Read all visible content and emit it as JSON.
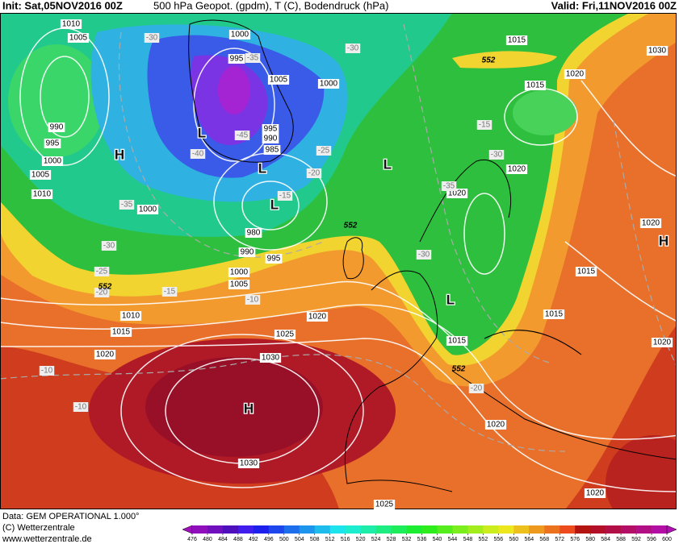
{
  "header": {
    "init": "Init: Sat,05NOV2016 00Z",
    "title": "500 hPa Geopot. (gpdm), T (C), Bodendruck (hPa)",
    "valid": "Valid: Fri,11NOV2016 00Z"
  },
  "footer": {
    "data": "Data: GEM OPERATIONAL 1.000°",
    "copyright": "(C) Wetterzentrale",
    "url": "www.wetterzentrale.de"
  },
  "colorbar": {
    "ticks": [
      476,
      480,
      484,
      488,
      492,
      496,
      500,
      504,
      508,
      512,
      516,
      520,
      524,
      528,
      532,
      536,
      540,
      544,
      548,
      552,
      556,
      560,
      564,
      568,
      572,
      576,
      580,
      584,
      588,
      592,
      596,
      600
    ]
  },
  "map": {
    "pressure_labels": [
      1010,
      1005,
      1000,
      995,
      1005,
      1000,
      995,
      990,
      985,
      990,
      995,
      1000,
      1005,
      1010,
      1000,
      980,
      990,
      995,
      1000,
      1005,
      1010,
      1015,
      1020,
      1020,
      1025,
      1030,
      1030,
      1025,
      1020,
      1020,
      1015,
      1015,
      1015,
      1020,
      1020,
      1020,
      1020,
      1015,
      1020,
      1015,
      1030
    ],
    "temperature_labels": [
      -30,
      -30,
      -35,
      -45,
      -40,
      -25,
      -20,
      -15,
      -35,
      -30,
      -25,
      -20,
      -15,
      -10,
      -10,
      -10,
      -15,
      -30,
      -35,
      -30,
      -20
    ],
    "thickness_labels": [
      552,
      552,
      552,
      552
    ],
    "centers": [
      "H",
      "L",
      "L",
      "L",
      "L",
      "L",
      "H",
      "H"
    ]
  }
}
